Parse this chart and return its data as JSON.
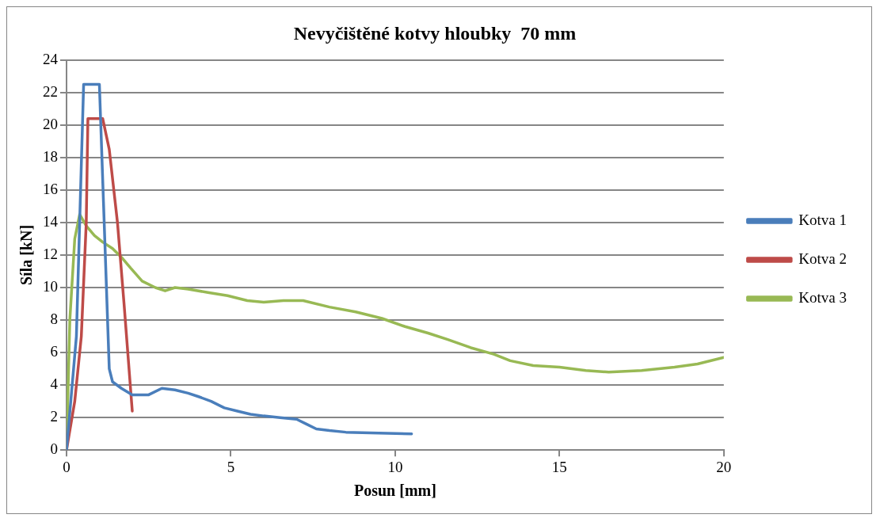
{
  "chart_data": {
    "type": "line",
    "title": "Nevyčištěné kotvy hloubky  70 mm",
    "xlabel": "Posun [mm]",
    "ylabel": "Síla [kN]",
    "xlim": [
      0,
      20
    ],
    "xticks": [
      0,
      5,
      10,
      15,
      20
    ],
    "ylim": [
      0,
      24
    ],
    "yticks": [
      0,
      2,
      4,
      6,
      8,
      10,
      12,
      14,
      16,
      18,
      20,
      22,
      24
    ],
    "grid": "y",
    "legend": "right",
    "marker": "none",
    "line_style": "solid",
    "series": [
      {
        "name": "Kotva 1",
        "color": "#4a7ebb",
        "x": [
          0,
          0.3,
          0.52,
          1.0,
          1.3,
          1.4,
          1.67,
          2.0,
          2.5,
          2.9,
          3.3,
          3.7,
          4.0,
          4.4,
          4.8,
          5.2,
          5.6,
          6.0,
          6.5,
          7.0,
          7.3,
          7.6,
          8.0,
          8.5,
          9.5,
          10.5
        ],
        "values": [
          0,
          7,
          22.5,
          22.5,
          5,
          4.2,
          3.8,
          3.4,
          3.4,
          3.8,
          3.7,
          3.5,
          3.3,
          3.0,
          2.6,
          2.4,
          2.2,
          2.1,
          2.0,
          1.9,
          1.6,
          1.3,
          1.2,
          1.1,
          1.05,
          1.0
        ]
      },
      {
        "name": "Kotva 2",
        "color": "#be4b48",
        "x": [
          0,
          0.25,
          0.45,
          0.6,
          0.65,
          1.1,
          1.3,
          1.55,
          1.75,
          2.0
        ],
        "values": [
          0,
          3,
          7,
          14,
          20.4,
          20.4,
          18.5,
          14,
          9,
          2.4
        ]
      },
      {
        "name": "Kotva 3",
        "color": "#98b954",
        "x": [
          0,
          0.1,
          0.25,
          0.4,
          0.6,
          0.85,
          1.1,
          1.4,
          1.7,
          1.95,
          2.3,
          2.7,
          3.0,
          3.3,
          3.7,
          4.3,
          4.9,
          5.5,
          6.0,
          6.6,
          7.2,
          8.0,
          8.8,
          9.6,
          10.3,
          11.0,
          11.6,
          12.3,
          13.0,
          13.5,
          14.2,
          15.0,
          15.8,
          16.5,
          17.5,
          18.5,
          19.2,
          20
        ],
        "values": [
          0,
          8,
          13,
          14.5,
          13.8,
          13.2,
          12.8,
          12.4,
          11.8,
          11.2,
          10.4,
          10.0,
          9.8,
          10.0,
          9.9,
          9.7,
          9.5,
          9.2,
          9.1,
          9.2,
          9.2,
          8.8,
          8.5,
          8.1,
          7.6,
          7.2,
          6.8,
          6.3,
          5.9,
          5.5,
          5.2,
          5.1,
          4.9,
          4.8,
          4.9,
          5.1,
          5.3,
          5.7
        ]
      }
    ]
  }
}
